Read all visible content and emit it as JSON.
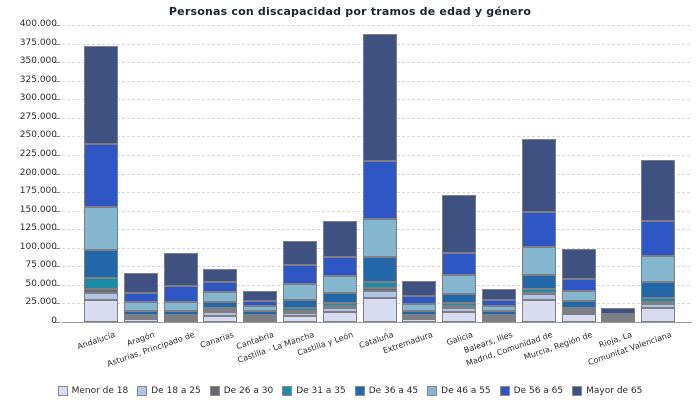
{
  "chart_data": {
    "type": "bar",
    "stacked": true,
    "title": "Personas con discapacidad por tramos de edad y género",
    "xlabel": "",
    "ylabel": "",
    "ylim": [
      0,
      400000
    ],
    "ytick_step": 25000,
    "grid": "dashed-horizontal",
    "legend_position": "bottom",
    "number_format": "es (dot thousands separator)",
    "categories": [
      "Andalucía",
      "Aragón",
      "Asturias, Principado de",
      "Canarias",
      "Cantabria",
      "Castilla - La Mancha",
      "Castilla y León",
      "Cataluña",
      "Extremadura",
      "Galicia",
      "Balears, Illes",
      "Madrid, Comunidad de",
      "Murcia, Región de",
      "Rioja, La",
      "Comunitat Valenciana"
    ],
    "series": [
      {
        "name": "Menor de 18",
        "color": "#d7dcf0",
        "values": [
          29500,
          3600,
          3100,
          8500,
          3100,
          8000,
          14000,
          31700,
          4000,
          13000,
          3100,
          29500,
          10300,
          1200,
          19200
        ]
      },
      {
        "name": "De 18 a 25",
        "color": "#b0c5e6",
        "values": [
          10200,
          1800,
          2300,
          4500,
          2300,
          4100,
          4500,
          9800,
          2200,
          5400,
          2300,
          7600,
          3500,
          900,
          5400
        ]
      },
      {
        "name": "De 26 a 30",
        "color": "#68696e",
        "values": [
          4500,
          1700,
          2000,
          3500,
          1700,
          2600,
          2700,
          4500,
          1800,
          2600,
          1700,
          2600,
          2300,
          700,
          2600
        ]
      },
      {
        "name": "De 31 a 35",
        "color": "#1a8ca8",
        "values": [
          15200,
          2300,
          2000,
          2900,
          2300,
          4500,
          4000,
          8000,
          1800,
          4100,
          2300,
          4500,
          3100,
          1000,
          4500
        ]
      },
      {
        "name": "De 36 a 45",
        "color": "#2268a8",
        "values": [
          37000,
          5300,
          5700,
          7000,
          4900,
          10300,
          13400,
          33500,
          5300,
          12500,
          5800,
          19600,
          8900,
          1800,
          22300
        ]
      },
      {
        "name": "De 46 a 55",
        "color": "#84b6cf",
        "values": [
          58100,
          12500,
          11300,
          13400,
          6700,
          22300,
          23600,
          51300,
          9400,
          26000,
          6700,
          37100,
          13400,
          2500,
          34800
        ]
      },
      {
        "name": "De 56 a 65",
        "color": "#2e56c4",
        "values": [
          84800,
          12500,
          22200,
          13400,
          7600,
          24500,
          25900,
          78600,
          9900,
          29700,
          7600,
          47800,
          16100,
          3300,
          46900
        ]
      },
      {
        "name": "Mayor de 65",
        "color": "#3e5181",
        "values": [
          132600,
          26800,
          44400,
          17600,
          12900,
          32700,
          47600,
          170500,
          21400,
          77200,
          14700,
          98200,
          41100,
          7600,
          82600
        ]
      }
    ]
  }
}
